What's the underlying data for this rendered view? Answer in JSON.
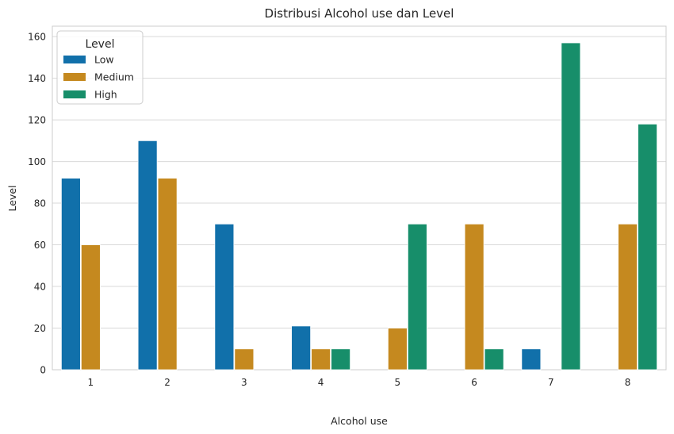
{
  "chart_data": {
    "type": "bar",
    "title": "Distribusi Alcohol use dan Level",
    "xlabel": "Alcohol use",
    "ylabel": "Level",
    "categories": [
      "1",
      "2",
      "3",
      "4",
      "5",
      "6",
      "7",
      "8"
    ],
    "ylim": [
      0,
      165
    ],
    "yticks": [
      0,
      20,
      40,
      60,
      80,
      100,
      120,
      140,
      160
    ],
    "grid": true,
    "legend": {
      "title": "Level",
      "position": "top-left"
    },
    "series": [
      {
        "name": "Low",
        "color": "#1170aa",
        "values": [
          92,
          110,
          70,
          21,
          0,
          0,
          10,
          0
        ]
      },
      {
        "name": "Medium",
        "color": "#c5891f",
        "values": [
          60,
          92,
          10,
          10,
          20,
          70,
          0,
          70
        ]
      },
      {
        "name": "High",
        "color": "#178e6a",
        "values": [
          0,
          0,
          0,
          10,
          70,
          10,
          157,
          118
        ]
      }
    ]
  }
}
